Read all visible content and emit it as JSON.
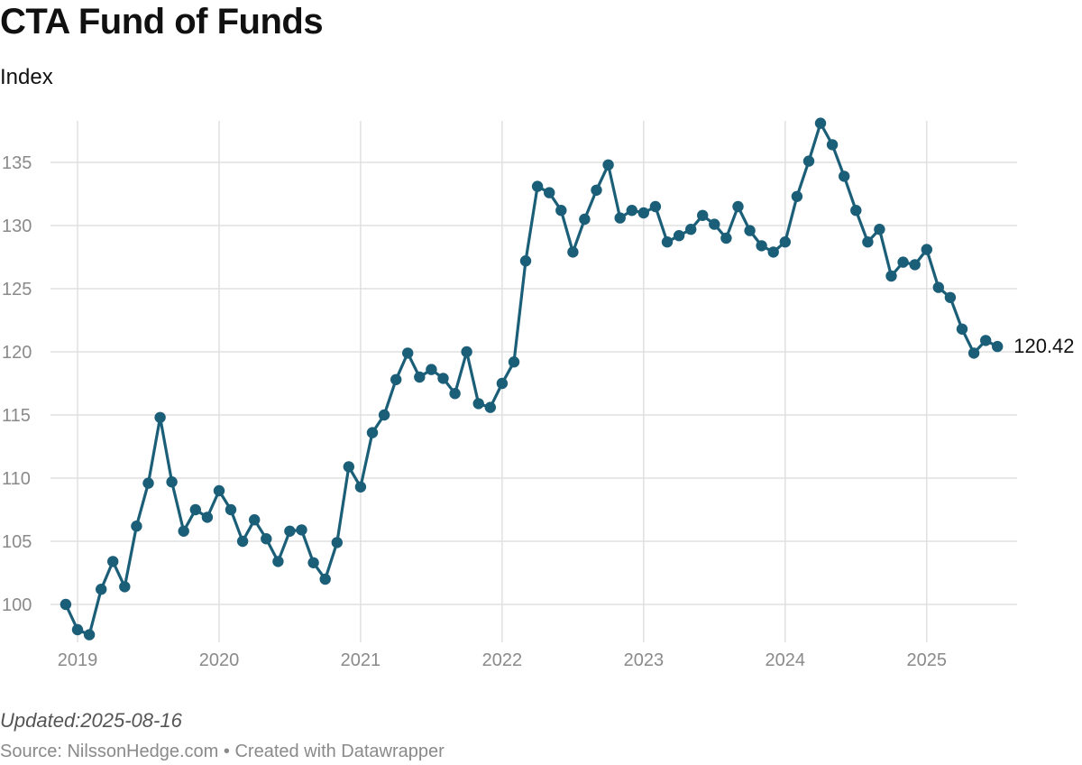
{
  "header": {
    "title": "CTA Fund of Funds",
    "subtitle": "Index"
  },
  "footer": {
    "updated": "Updated:2025-08-16",
    "source_prefix": "Source: ",
    "source": "NilssonHedge.com",
    "separator": " • ",
    "credit": "Created with Datawrapper"
  },
  "colors": {
    "line": "#1b5e78",
    "grid": "#e0e0e0",
    "tick_text": "#8a8a8a"
  },
  "chart_data": {
    "type": "line",
    "title": "CTA Fund of Funds",
    "subtitle": "Index",
    "xlabel": "",
    "ylabel": "",
    "xlim": [
      "2018-11",
      "2025-08"
    ],
    "ylim": [
      97.5,
      138.5
    ],
    "x_ticks": [
      "2019",
      "2020",
      "2021",
      "2022",
      "2023",
      "2024",
      "2025"
    ],
    "y_ticks": [
      100,
      105,
      110,
      115,
      120,
      125,
      130,
      135
    ],
    "grid": true,
    "legend": "none",
    "end_label": "120.42",
    "series": [
      {
        "x": [
          "2018-12",
          "2019-01",
          "2019-02",
          "2019-03",
          "2019-04",
          "2019-05",
          "2019-06",
          "2019-07",
          "2019-08",
          "2019-09",
          "2019-10",
          "2019-11",
          "2019-12",
          "2020-01",
          "2020-02",
          "2020-03",
          "2020-04",
          "2020-05",
          "2020-06",
          "2020-07",
          "2020-08",
          "2020-09",
          "2020-10",
          "2020-11",
          "2020-12",
          "2021-01",
          "2021-02",
          "2021-03",
          "2021-04",
          "2021-05",
          "2021-06",
          "2021-07",
          "2021-08",
          "2021-09",
          "2021-10",
          "2021-11",
          "2021-12",
          "2022-01",
          "2022-02",
          "2022-03",
          "2022-04",
          "2022-05",
          "2022-06",
          "2022-07",
          "2022-08",
          "2022-09",
          "2022-10",
          "2022-11",
          "2022-12",
          "2023-01",
          "2023-02",
          "2023-03",
          "2023-04",
          "2023-05",
          "2023-06",
          "2023-07",
          "2023-08",
          "2023-09",
          "2023-10",
          "2023-11",
          "2023-12",
          "2024-01",
          "2024-02",
          "2024-03",
          "2024-04",
          "2024-05",
          "2024-06",
          "2024-07",
          "2024-08",
          "2024-09",
          "2024-10",
          "2024-11",
          "2024-12",
          "2025-01",
          "2025-02",
          "2025-03",
          "2025-04",
          "2025-05",
          "2025-06",
          "2025-07"
        ],
        "values": [
          100.0,
          98.0,
          97.6,
          101.2,
          103.4,
          101.4,
          106.2,
          109.6,
          114.8,
          109.7,
          105.8,
          107.5,
          106.9,
          109.0,
          107.5,
          105.0,
          106.7,
          105.2,
          103.4,
          105.8,
          105.9,
          103.3,
          102.0,
          104.9,
          110.9,
          109.3,
          113.6,
          115.0,
          117.8,
          119.9,
          118.0,
          118.6,
          117.9,
          116.7,
          120.0,
          115.9,
          115.6,
          117.5,
          119.2,
          127.2,
          133.1,
          132.6,
          131.2,
          127.9,
          130.5,
          132.8,
          134.8,
          130.6,
          131.2,
          131.0,
          131.5,
          128.7,
          129.2,
          129.7,
          130.8,
          130.1,
          129.0,
          131.5,
          129.6,
          128.4,
          127.9,
          128.7,
          132.3,
          135.1,
          138.1,
          136.4,
          133.9,
          131.2,
          128.7,
          129.7,
          126.0,
          127.1,
          126.9,
          128.1,
          125.1,
          124.3,
          121.8,
          119.9,
          120.9,
          120.42
        ]
      }
    ]
  }
}
